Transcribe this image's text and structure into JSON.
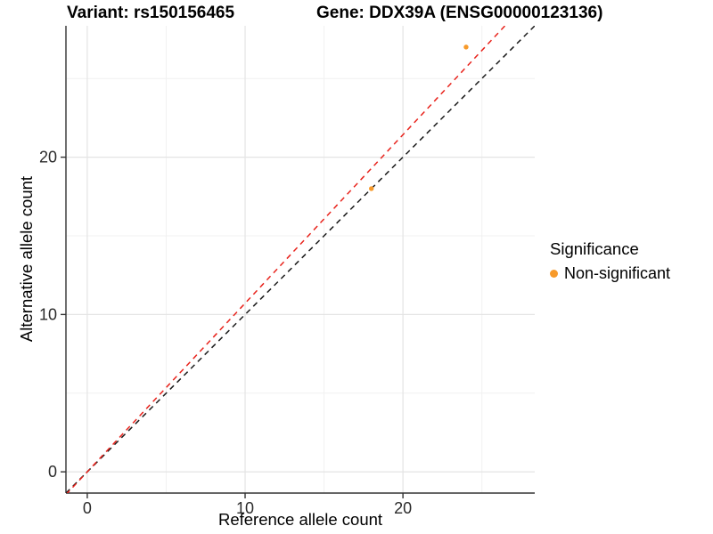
{
  "titles": {
    "left": "Variant: rs150156465",
    "right": "Gene: DDX39A (ENSG00000123136)"
  },
  "axes": {
    "x_label": "Reference allele count",
    "y_label": "Alternative allele count"
  },
  "legend": {
    "title": "Significance",
    "items": [
      {
        "label": "Non-significant",
        "color": "#f79a2b"
      }
    ]
  },
  "chart_data": {
    "type": "scatter",
    "title": "Variant: rs150156465  /  Gene: DDX39A (ENSG00000123136)",
    "xlabel": "Reference allele count",
    "ylabel": "Alternative allele count",
    "xlim": [
      -1.35,
      28.35
    ],
    "ylim": [
      -1.35,
      28.35
    ],
    "x_ticks": [
      0,
      10,
      20
    ],
    "y_ticks": [
      0,
      10,
      20
    ],
    "x_minor_ticks": [
      5,
      15,
      25
    ],
    "y_minor_ticks": [
      5,
      15,
      25
    ],
    "grid": "on",
    "legend_position": "right",
    "points": [
      {
        "x": 24,
        "y": 27,
        "series": "Non-significant"
      },
      {
        "x": 18,
        "y": 18,
        "series": "Non-significant"
      }
    ],
    "lines": [
      {
        "name": "identity",
        "slope": 1.0,
        "intercept": 0,
        "color": "#1a1a1a",
        "dash": true
      },
      {
        "name": "expected-ratio",
        "slope": 1.0714,
        "intercept": 0,
        "color": "#e8231c",
        "dash": true
      }
    ],
    "style": {
      "point_color": "#f79a2b",
      "grid_major_color": "#e4e4e4",
      "grid_minor_color": "#f1f1f1",
      "axis_line_color": "#333333",
      "tick_label_color": "#2b2b2b"
    }
  }
}
